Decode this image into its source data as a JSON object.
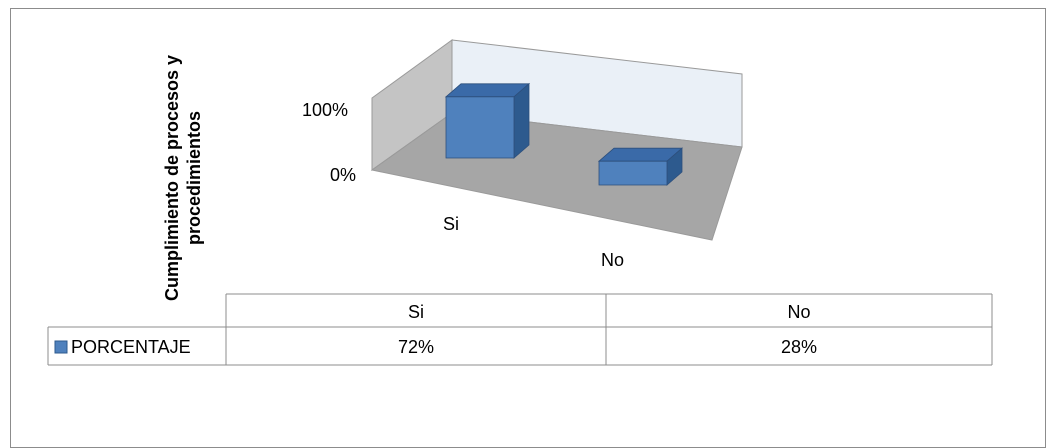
{
  "chart_data": {
    "type": "bar",
    "ylabel_lines": [
      "Cumplimiento de procesos y",
      "procedimientos"
    ],
    "y_ticks": [
      "100%",
      "0%"
    ],
    "ylim": [
      0,
      1
    ],
    "categories": [
      "Si",
      "No"
    ],
    "series": [
      {
        "name": "PORCENTAJE",
        "values": [
          0.72,
          0.28
        ],
        "labels": [
          "72%",
          "28%"
        ]
      }
    ],
    "data_table": true,
    "colors": {
      "bar_front": "#4f81bd",
      "bar_top": "#3a6aa8",
      "bar_side": "#2d5a8e",
      "wall": "#c0c0c0",
      "floor": "#a6a6a6",
      "back_wall": "#eaf0f7"
    }
  }
}
